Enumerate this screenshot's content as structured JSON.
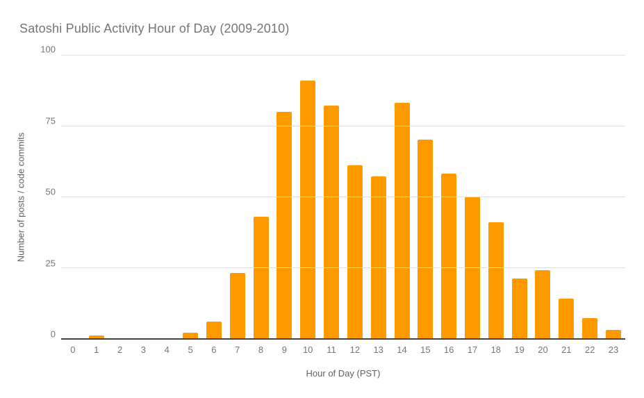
{
  "page": {
    "background": "#FFFFFF"
  },
  "chart_data": {
    "type": "bar",
    "title": "Satoshi Public Activity Hour of Day (2009-2010)",
    "xlabel": "Hour of Day (PST)",
    "ylabel": "Number of posts / code commits",
    "categories": [
      "0",
      "1",
      "2",
      "3",
      "4",
      "5",
      "6",
      "7",
      "8",
      "9",
      "10",
      "11",
      "12",
      "13",
      "14",
      "15",
      "16",
      "17",
      "18",
      "19",
      "20",
      "21",
      "22",
      "23"
    ],
    "values": [
      0,
      1,
      0,
      0,
      0,
      2,
      6,
      23,
      43,
      80,
      91,
      82,
      61,
      57,
      83,
      70,
      58,
      50,
      41,
      21,
      24,
      14,
      7,
      3
    ],
    "ylim": [
      0,
      100
    ],
    "yticks": [
      0,
      25,
      50,
      75,
      100
    ],
    "grid": true,
    "legend": "none",
    "colors": {
      "bar": "#FF9900",
      "gridline": "#E0E0E0",
      "baseline": "#424242",
      "tick_label": "#757575",
      "axis_title": "#5F5F5F",
      "title": "#757575"
    }
  }
}
